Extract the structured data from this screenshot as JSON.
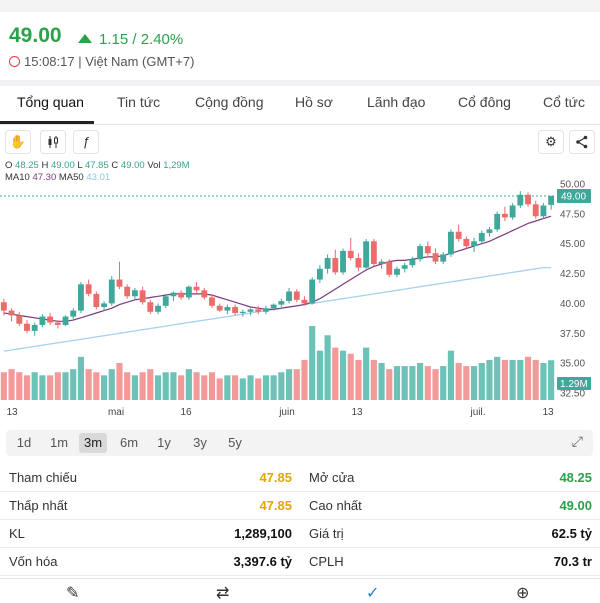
{
  "header": {
    "price": "49.00",
    "change": "1.15 / 2.40%",
    "time": "15:08:17 | Việt Nam (GMT+7)"
  },
  "tabs": [
    "Tổng quan",
    "Tin tức",
    "Cộng đồng",
    "Hồ sơ",
    "Lãnh đạo",
    "Cổ đông",
    "Cổ tức"
  ],
  "toolbar": {
    "icons": [
      "hand-icon",
      "candlestick-icon",
      "fx-icon",
      "settings-icon",
      "share-icon"
    ]
  },
  "ohlc_legend": {
    "o_label": "O",
    "o": "48.25",
    "h_label": "H",
    "h": "49.00",
    "l_label": "L",
    "l": "47.85",
    "c_label": "C",
    "c": "49.00",
    "vol_label": "Vol",
    "vol": "1,29M",
    "ma10_label": "MA10",
    "ma10": "47.30",
    "ma50_label": "MA50",
    "ma50": "43.01"
  },
  "chart_data": {
    "type": "candlestick",
    "y_ticks": [
      "50.00",
      "47.50",
      "45.00",
      "42.50",
      "40.00",
      "37.50",
      "35.00",
      "32.50"
    ],
    "ylim": [
      32.5,
      50.0
    ],
    "x_ticks": [
      "13",
      "mai",
      "16",
      "juin",
      "13",
      "juil.",
      "13"
    ],
    "last_price_label": "49.00",
    "volume_label": "1.29M",
    "colors": {
      "up": "#3fa89a",
      "down": "#ec6b6b",
      "ma10": "#7a3a7a",
      "ma50": "#a6d2ee",
      "up_vol": "#6cc2b6",
      "down_vol": "#f29a9a"
    },
    "candles": [
      [
        40.1,
        40.4,
        39.0,
        39.4
      ],
      [
        39.4,
        39.6,
        38.5,
        39.0
      ],
      [
        39.0,
        39.3,
        38.1,
        38.3
      ],
      [
        38.3,
        38.6,
        37.5,
        37.7
      ],
      [
        37.7,
        38.4,
        37.3,
        38.2
      ],
      [
        38.2,
        39.1,
        38.0,
        38.9
      ],
      [
        38.9,
        39.2,
        38.2,
        38.4
      ],
      [
        38.4,
        38.6,
        37.9,
        38.2
      ],
      [
        38.2,
        39.0,
        38.1,
        38.9
      ],
      [
        38.9,
        39.6,
        38.7,
        39.4
      ],
      [
        39.4,
        41.8,
        39.2,
        41.6
      ],
      [
        41.6,
        42.0,
        40.6,
        40.8
      ],
      [
        40.8,
        41.0,
        39.5,
        39.7
      ],
      [
        39.7,
        40.2,
        39.4,
        40.0
      ],
      [
        40.0,
        42.3,
        39.8,
        42.0
      ],
      [
        42.0,
        43.5,
        41.2,
        41.4
      ],
      [
        41.4,
        41.6,
        40.4,
        40.6
      ],
      [
        40.6,
        41.3,
        40.3,
        41.1
      ],
      [
        41.1,
        41.4,
        39.9,
        40.1
      ],
      [
        40.1,
        40.3,
        39.1,
        39.3
      ],
      [
        39.3,
        40.0,
        39.1,
        39.8
      ],
      [
        39.8,
        40.8,
        39.6,
        40.6
      ],
      [
        40.6,
        41.0,
        40.2,
        40.9
      ],
      [
        40.9,
        41.1,
        40.3,
        40.5
      ],
      [
        40.5,
        41.5,
        40.3,
        41.4
      ],
      [
        41.4,
        41.8,
        40.9,
        41.1
      ],
      [
        41.1,
        41.3,
        40.3,
        40.5
      ],
      [
        40.5,
        40.7,
        39.6,
        39.8
      ],
      [
        39.8,
        40.0,
        39.3,
        39.4
      ],
      [
        39.4,
        39.9,
        39.1,
        39.7
      ],
      [
        39.7,
        39.9,
        39.0,
        39.2
      ],
      [
        39.2,
        39.5,
        38.9,
        39.3
      ],
      [
        39.3,
        39.6,
        39.0,
        39.5
      ],
      [
        39.5,
        39.8,
        39.1,
        39.3
      ],
      [
        39.3,
        39.8,
        39.1,
        39.6
      ],
      [
        39.6,
        40.0,
        39.4,
        39.9
      ],
      [
        39.9,
        40.4,
        39.7,
        40.2
      ],
      [
        40.2,
        41.3,
        40.0,
        41.0
      ],
      [
        41.0,
        41.2,
        40.1,
        40.3
      ],
      [
        40.3,
        40.6,
        39.8,
        40.0
      ],
      [
        40.0,
        42.2,
        39.9,
        42.0
      ],
      [
        42.0,
        43.2,
        41.7,
        42.9
      ],
      [
        42.9,
        44.1,
        42.5,
        43.8
      ],
      [
        43.8,
        44.5,
        42.4,
        42.6
      ],
      [
        42.6,
        44.6,
        42.4,
        44.4
      ],
      [
        44.4,
        45.5,
        43.6,
        43.8
      ],
      [
        43.8,
        44.2,
        42.7,
        43.0
      ],
      [
        43.0,
        45.4,
        42.9,
        45.2
      ],
      [
        45.2,
        45.4,
        43.1,
        43.3
      ],
      [
        43.3,
        43.7,
        42.9,
        43.5
      ],
      [
        43.5,
        43.7,
        42.2,
        42.4
      ],
      [
        42.4,
        43.1,
        42.2,
        42.9
      ],
      [
        42.9,
        43.4,
        42.6,
        43.2
      ],
      [
        43.2,
        43.9,
        43.0,
        43.7
      ],
      [
        43.7,
        45.0,
        43.5,
        44.8
      ],
      [
        44.8,
        45.2,
        44.0,
        44.2
      ],
      [
        44.2,
        44.6,
        43.3,
        43.5
      ],
      [
        43.5,
        44.3,
        43.3,
        44.1
      ],
      [
        44.1,
        46.2,
        43.9,
        46.0
      ],
      [
        46.0,
        46.6,
        45.2,
        45.4
      ],
      [
        45.4,
        45.6,
        44.6,
        44.8
      ],
      [
        44.8,
        45.5,
        44.3,
        45.2
      ],
      [
        45.2,
        46.1,
        45.0,
        45.9
      ],
      [
        45.9,
        46.4,
        45.6,
        46.2
      ],
      [
        46.2,
        47.7,
        46.0,
        47.5
      ],
      [
        47.5,
        48.1,
        46.9,
        47.2
      ],
      [
        47.2,
        48.4,
        47.0,
        48.2
      ],
      [
        48.2,
        49.4,
        48.0,
        49.1
      ],
      [
        49.1,
        49.3,
        48.1,
        48.3
      ],
      [
        48.3,
        48.6,
        47.1,
        47.3
      ],
      [
        47.3,
        48.4,
        47.1,
        48.2
      ],
      [
        48.25,
        49.0,
        47.85,
        49.0
      ]
    ],
    "ma10": [
      39.2,
      39.1,
      39.0,
      38.9,
      38.8,
      38.7,
      38.6,
      38.5,
      38.5,
      38.6,
      38.8,
      39.0,
      39.2,
      39.4,
      39.6,
      39.9,
      40.1,
      40.3,
      40.4,
      40.5,
      40.6,
      40.7,
      40.8,
      40.8,
      40.8,
      40.8,
      40.8,
      40.7,
      40.5,
      40.3,
      40.1,
      39.9,
      39.7,
      39.6,
      39.5,
      39.5,
      39.6,
      39.7,
      39.8,
      39.9,
      40.1,
      40.4,
      40.8,
      41.2,
      41.6,
      42.0,
      42.4,
      42.8,
      43.1,
      43.3,
      43.5,
      43.6,
      43.6,
      43.7,
      43.8,
      43.9,
      43.9,
      44.0,
      44.2,
      44.4,
      44.6,
      44.8,
      45.0,
      45.2,
      45.5,
      45.8,
      46.1,
      46.4,
      46.7,
      46.9,
      47.1,
      47.3
    ],
    "ma50": [
      36.0,
      36.1,
      36.2,
      36.3,
      36.4,
      36.5,
      36.6,
      36.7,
      36.8,
      36.9,
      37.0,
      37.1,
      37.2,
      37.3,
      37.4,
      37.5,
      37.6,
      37.7,
      37.8,
      37.9,
      38.0,
      38.1,
      38.2,
      38.3,
      38.4,
      38.5,
      38.6,
      38.7,
      38.8,
      38.9,
      39.0,
      39.1,
      39.2,
      39.3,
      39.4,
      39.5,
      39.6,
      39.7,
      39.8,
      39.9,
      40.0,
      40.1,
      40.2,
      40.3,
      40.4,
      40.5,
      40.6,
      40.7,
      40.8,
      40.9,
      41.0,
      41.1,
      41.2,
      41.3,
      41.4,
      41.5,
      41.6,
      41.7,
      41.8,
      41.9,
      42.0,
      42.1,
      42.2,
      42.3,
      42.4,
      42.5,
      42.6,
      42.7,
      42.8,
      42.9,
      43.0,
      43.0
    ],
    "volumes": [
      0.9,
      1.0,
      0.9,
      0.8,
      0.9,
      0.8,
      0.8,
      0.9,
      0.9,
      1.0,
      1.4,
      1.0,
      0.9,
      0.8,
      1.0,
      1.2,
      0.9,
      0.8,
      0.9,
      1.0,
      0.8,
      0.9,
      0.9,
      0.8,
      1.0,
      0.9,
      0.8,
      0.9,
      0.7,
      0.8,
      0.8,
      0.7,
      0.8,
      0.7,
      0.8,
      0.8,
      0.9,
      1.0,
      1.0,
      1.3,
      2.4,
      1.6,
      2.1,
      1.7,
      1.6,
      1.5,
      1.3,
      1.7,
      1.3,
      1.2,
      1.0,
      1.1,
      1.1,
      1.1,
      1.2,
      1.1,
      1.0,
      1.1,
      1.6,
      1.2,
      1.1,
      1.1,
      1.2,
      1.3,
      1.4,
      1.3,
      1.3,
      1.3,
      1.4,
      1.3,
      1.2,
      1.29
    ]
  },
  "range": {
    "options": [
      "1d",
      "1m",
      "3m",
      "6m",
      "1y",
      "3y",
      "5y"
    ],
    "active": "3m"
  },
  "stats": [
    {
      "left_label": "Tham chiếu",
      "left_value": "47.85",
      "left_color": "#e0a800",
      "right_label": "Mở cửa",
      "right_value": "48.25",
      "right_color": "#2aa24a"
    },
    {
      "left_label": "Thấp nhất",
      "left_value": "47.85",
      "left_color": "#e0a800",
      "right_label": "Cao nhất",
      "right_value": "49.00",
      "right_color": "#2aa24a"
    },
    {
      "left_label": "KL",
      "left_value": "1,289,100",
      "left_color": "#111111",
      "right_label": "Giá trị",
      "right_value": "62.5 tỷ",
      "right_color": "#111111"
    },
    {
      "left_label": "Vốn hóa",
      "left_value": "3,397.6 tỷ",
      "left_color": "#111111",
      "right_label": "CPLH",
      "right_value": "70.3 tr",
      "right_color": "#111111"
    }
  ],
  "bottom_bar": {
    "icons": [
      "pencil-icon",
      "swap-icon",
      "check-icon",
      "add-alert-icon"
    ]
  }
}
